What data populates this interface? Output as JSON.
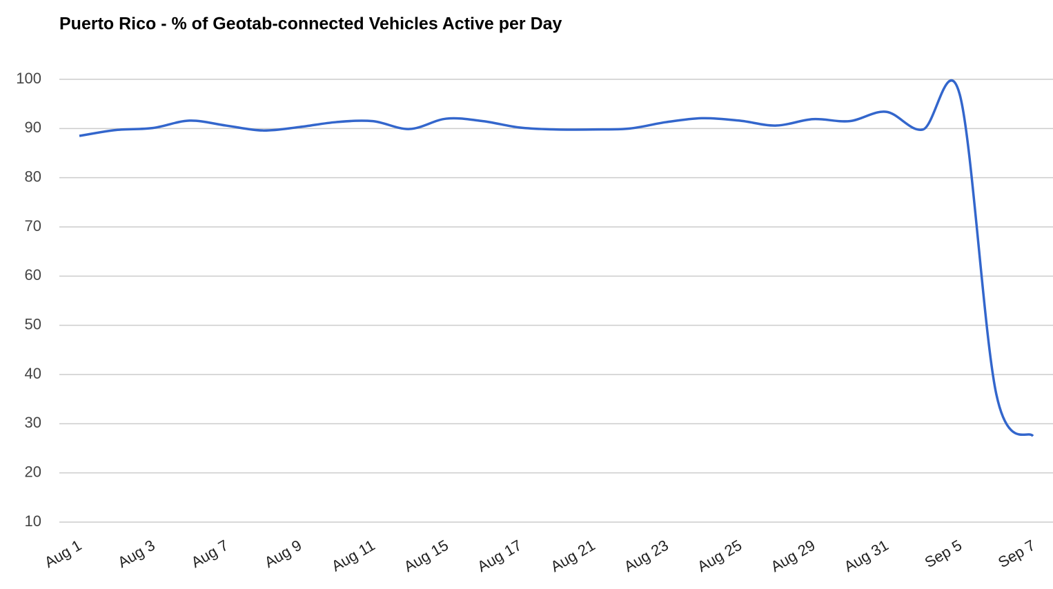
{
  "chart_data": {
    "type": "line",
    "title": "Puerto Rico - % of Geotab-connected Vehicles Active per Day",
    "categories": [
      "Aug 1",
      null,
      "Aug 3",
      null,
      "Aug 7",
      null,
      "Aug 9",
      null,
      "Aug 11",
      null,
      "Aug 15",
      null,
      "Aug 17",
      null,
      "Aug 21",
      null,
      "Aug 23",
      null,
      "Aug 25",
      null,
      "Aug 29",
      null,
      "Aug 31",
      null,
      "Sep 5",
      null,
      "Sep 7"
    ],
    "series": [
      {
        "name": "Puerto Rico",
        "color": "#3366cc",
        "values": [
          88.5,
          89.7,
          90.1,
          91.6,
          90.6,
          89.6,
          90.3,
          91.3,
          91.5,
          89.9,
          92.0,
          91.5,
          90.2,
          89.8,
          89.8,
          90.0,
          91.3,
          92.1,
          91.6,
          90.6,
          91.9,
          91.5,
          93.4,
          89.8,
          97.0,
          36.0,
          27.5
        ]
      }
    ],
    "ylim": [
      10,
      100
    ],
    "yticks": [
      10,
      20,
      30,
      40,
      50,
      60,
      70,
      80,
      90,
      100
    ],
    "grid": true
  }
}
